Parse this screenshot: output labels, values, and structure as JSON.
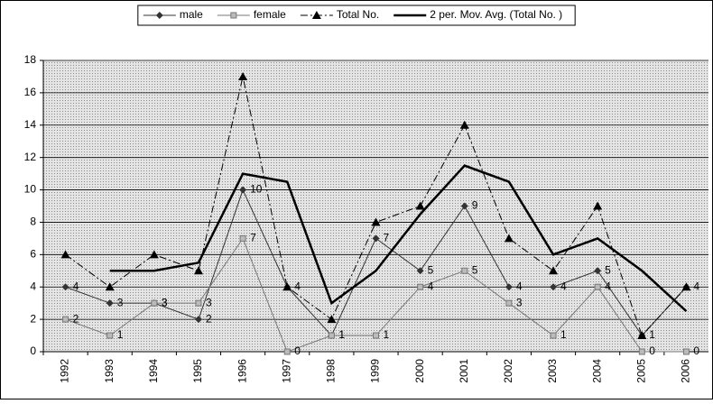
{
  "chart_data": {
    "type": "line",
    "categories": [
      "1992",
      "1993",
      "1994",
      "1995",
      "1996",
      "1997",
      "1998",
      "1999",
      "2000",
      "2001",
      "2002",
      "2003",
      "2004",
      "2005",
      "2006"
    ],
    "series": [
      {
        "name": "male",
        "color": "#333333",
        "marker": "diamond",
        "labels": true,
        "values": [
          4,
          3,
          3,
          2,
          10,
          4,
          1,
          7,
          5,
          9,
          4,
          4,
          5,
          1,
          4
        ]
      },
      {
        "name": "female",
        "color": "#777777",
        "marker": "square",
        "labels": true,
        "values": [
          2,
          1,
          3,
          3,
          7,
          0,
          1,
          1,
          4,
          5,
          3,
          1,
          4,
          0,
          0
        ]
      },
      {
        "name": "Total No.",
        "color": "#000000",
        "marker": "triangle",
        "dash": "dashdot",
        "values": [
          6,
          4,
          6,
          5,
          17,
          4,
          2,
          8,
          9,
          14,
          7,
          5,
          9,
          1,
          4
        ]
      },
      {
        "name": "2 per. Mov. Avg. (Total No. )",
        "color": "#000000",
        "width": 2.5,
        "values": [
          null,
          5,
          5,
          5.5,
          11,
          10.5,
          3,
          5,
          8.5,
          11.5,
          10.5,
          6,
          7,
          5,
          2.5
        ]
      }
    ],
    "ylim": [
      0,
      18
    ],
    "yticks": [
      0,
      2,
      4,
      6,
      8,
      10,
      12,
      14,
      16,
      18
    ],
    "grid": true,
    "legend": "top"
  }
}
